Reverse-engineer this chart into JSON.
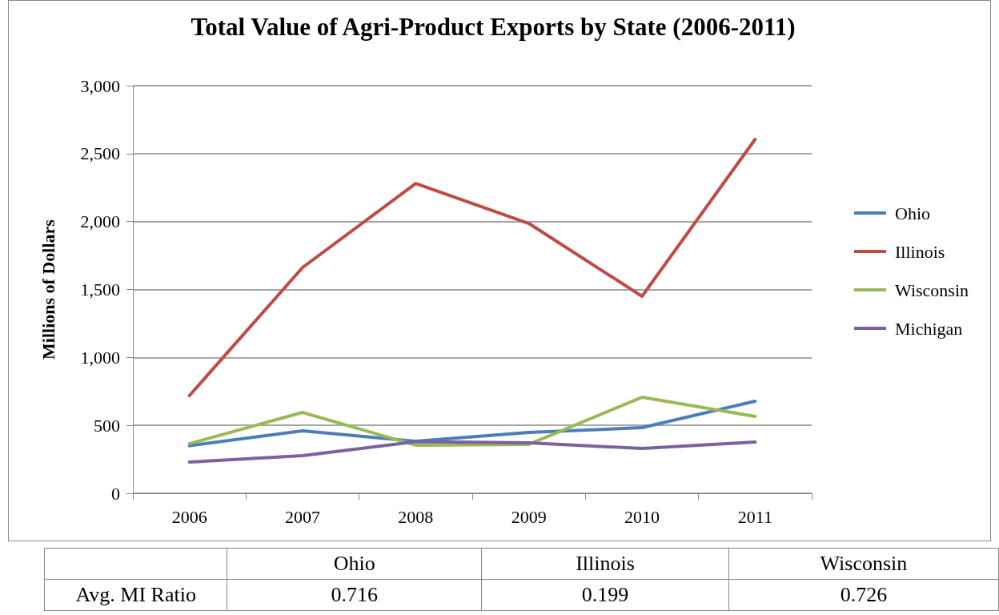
{
  "chart_data": {
    "type": "line",
    "title": "Total Value of Agri-Product Exports by State (2006-2011)",
    "ylabel": "Millions of Dollars",
    "categories": [
      "2006",
      "2007",
      "2008",
      "2009",
      "2010",
      "2011"
    ],
    "series": [
      {
        "name": "Ohio",
        "color": "#4a7ebb",
        "values": [
          350,
          460,
          383,
          448,
          483,
          678
        ]
      },
      {
        "name": "Illinois",
        "color": "#be4b48",
        "values": [
          719,
          1662,
          2280,
          1986,
          1450,
          2605
        ]
      },
      {
        "name": "Wisconsin",
        "color": "#98b954",
        "values": [
          365,
          595,
          354,
          360,
          707,
          566
        ]
      },
      {
        "name": "Michigan",
        "color": "#7d60a0",
        "values": [
          230,
          277,
          380,
          371,
          330,
          377
        ]
      }
    ],
    "ylim": [
      0,
      3000
    ],
    "yticks": [
      0,
      500,
      {
        "value": 1000,
        "label": "1,000"
      },
      {
        "value": 1500,
        "label": "1,500"
      },
      {
        "value": 2000,
        "label": "2,000"
      },
      {
        "value": 2500,
        "label": "2,500"
      },
      {
        "value": 3000,
        "label": "3,000"
      }
    ],
    "grid": "y",
    "legend": "right",
    "marker": "none",
    "line_style": "solid",
    "annotations": [
      "Avg. MI Ratio",
      "Ohio",
      "Illinois",
      "Wisconsin",
      "0.716",
      "0.199",
      "0.726"
    ]
  }
}
